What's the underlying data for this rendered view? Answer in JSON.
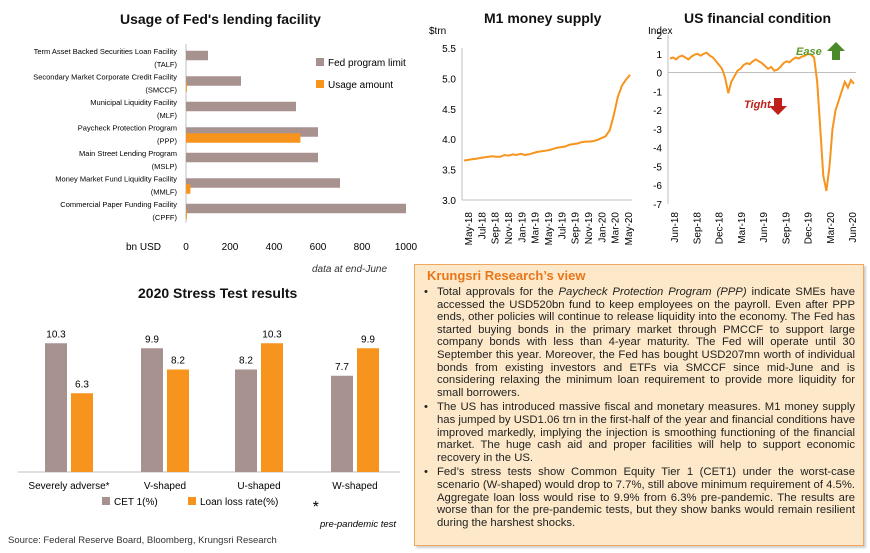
{
  "chart_data": [
    {
      "type": "bar",
      "orientation": "horizontal",
      "title": "Usage of Fed's lending facility",
      "xlabel": "bn USD",
      "xlim": [
        0,
        1000
      ],
      "xticks": [
        "0",
        "200",
        "400",
        "600",
        "800",
        "1000"
      ],
      "categories": [
        {
          "name": "Term Asset Backed Securities Loan Facility",
          "abbr": "(TALF)"
        },
        {
          "name": "Secondary Market Corporate Credit Facility",
          "abbr": "(SMCCF)"
        },
        {
          "name": "Municipal Liquidity Facility",
          "abbr": "(MLF)"
        },
        {
          "name": "Paycheck Protection Program",
          "abbr": "(PPP)"
        },
        {
          "name": "Main Street Lending Program",
          "abbr": "(MSLP)"
        },
        {
          "name": "Money Market Fund Liquidity Facility",
          "abbr": "(MMLF)"
        },
        {
          "name": "Commercial Paper Funding Facility",
          "abbr": "(CPFF)"
        }
      ],
      "series": [
        {
          "name": "Fed program limit",
          "color": "#a89290",
          "values": [
            100,
            250,
            500,
            600,
            600,
            700,
            1000
          ]
        },
        {
          "name": "Usage amount",
          "color": "#f7941d",
          "values": [
            0,
            4,
            0,
            520,
            0,
            20,
            4
          ]
        }
      ],
      "note": "data at end-June"
    },
    {
      "type": "line",
      "title": "M1 money supply",
      "ylabel": "$trn",
      "ylim": [
        3.0,
        5.5
      ],
      "yticks": [
        "3.0",
        "3.5",
        "4.0",
        "4.5",
        "5.0",
        "5.5"
      ],
      "xticks": [
        "May-18",
        "Jul-18",
        "Sep-18",
        "Nov-18",
        "Jan-19",
        "Mar-19",
        "May-19",
        "Jul-19",
        "Sep-19",
        "Nov-19",
        "Jan-20",
        "Mar-20",
        "May-20"
      ],
      "series": [
        {
          "color": "#f7941d",
          "values": [
            3.65,
            3.66,
            3.67,
            3.68,
            3.69,
            3.7,
            3.71,
            3.72,
            3.71,
            3.71,
            3.74,
            3.73,
            3.75,
            3.74,
            3.76,
            3.74,
            3.75,
            3.77,
            3.79,
            3.8,
            3.81,
            3.82,
            3.84,
            3.86,
            3.87,
            3.88,
            3.91,
            3.92,
            3.93,
            3.95,
            3.96,
            3.96,
            3.97,
            3.99,
            4.02,
            4.05,
            4.15,
            4.4,
            4.7,
            4.88,
            4.98,
            5.06
          ]
        }
      ]
    },
    {
      "type": "line",
      "title": "US financial condition",
      "ylabel": "Index",
      "ylim": [
        -7,
        2
      ],
      "yticks": [
        "2",
        "1",
        "0",
        "-1",
        "-2",
        "-3",
        "-4",
        "-5",
        "-6",
        "-7"
      ],
      "xticks": [
        "Jun-18",
        "Sep-18",
        "Dec-18",
        "Mar-19",
        "Jun-19",
        "Sep-19",
        "Dec-19",
        "Mar-20",
        "Jun-20"
      ],
      "series": [
        {
          "color": "#f7941d",
          "values": [
            0.75,
            0.8,
            0.7,
            0.85,
            0.9,
            0.8,
            0.7,
            0.85,
            0.95,
            1.0,
            0.9,
            1.0,
            1.05,
            0.9,
            0.8,
            0.6,
            0.4,
            0.2,
            -0.3,
            -1.1,
            -0.5,
            -0.2,
            0.1,
            0.2,
            0.4,
            0.5,
            0.45,
            0.6,
            0.7,
            0.6,
            0.5,
            0.35,
            0.2,
            0.3,
            0.1,
            0.15,
            0.3,
            0.5,
            0.6,
            0.55,
            0.7,
            0.8,
            0.75,
            0.85,
            0.9,
            1.0,
            0.95,
            0.8,
            -0.5,
            -3.0,
            -5.5,
            -6.3,
            -5.0,
            -3.0,
            -2.0,
            -1.5,
            -1.0,
            -0.5,
            -0.8,
            -0.4,
            -0.6
          ]
        }
      ],
      "annotations": [
        {
          "text": "Ease",
          "color": "#5a9a2a",
          "arrow": "up",
          "arrow_color": "#4a8a2a"
        },
        {
          "text": "Tight",
          "color": "#c0201a",
          "arrow": "down",
          "arrow_color": "#c0201a"
        }
      ]
    },
    {
      "type": "bar",
      "title": "2020 Stress Test results",
      "ylim": [
        0,
        12
      ],
      "categories": [
        "Severely adverse*",
        "V-shaped",
        "U-shaped",
        "W-shaped"
      ],
      "series": [
        {
          "name": "CET 1(%)",
          "color": "#a89290",
          "values": [
            10.3,
            9.9,
            8.2,
            7.7
          ]
        },
        {
          "name": "Loan loss rate(%)",
          "color": "#f7941d",
          "values": [
            6.3,
            8.2,
            10.3,
            9.9
          ]
        }
      ],
      "footnote_mark": "*",
      "footnote": "pre-pandemic test"
    }
  ],
  "research_view": {
    "title": "Krungsri Research’s view",
    "bullets": [
      {
        "pre": "Total approvals for the ",
        "em": "Paycheck Protection Program (PPP)",
        "post": " indicate SMEs have accessed the USD520bn fund to keep employees on the payroll. Even after PPP ends, other policies will continue to release liquidity into the economy. The Fed has started buying bonds in the primary market through PMCCF to support large company bonds with less than 4-year maturity. The Fed will operate until 30 September this year. Moreover, the Fed has bought USD207mn worth of individual bonds from existing investors and ETFs via SMCCF since mid-June and is considering relaxing the minimum loan requirement to provide more liquidity for small borrowers."
      },
      {
        "pre": "The US has introduced massive fiscal and monetary measures. M1 money supply has jumped by USD1.06 trn in the first-half of the year and financial conditions have improved markedly, implying the injection is smoothing functioning of the financial market. The huge cash aid and proper facilities will help to support economic recovery in the US.",
        "em": "",
        "post": ""
      },
      {
        "pre": "Fed’s stress tests show Common Equity Tier 1 (CET1) under the worst-case scenario (W-shaped) would drop to 7.7%, still above minimum requirement of 4.5%. Aggregate loan loss would rise to 9.9% from 6.3% pre-pandemic. The results are worse than for the pre-pandemic tests, but they show banks would remain resilient during the harshest shocks.",
        "em": "",
        "post": ""
      }
    ]
  },
  "source": "Source: Federal Reserve Board,  Bloomberg, Krungsri Research"
}
